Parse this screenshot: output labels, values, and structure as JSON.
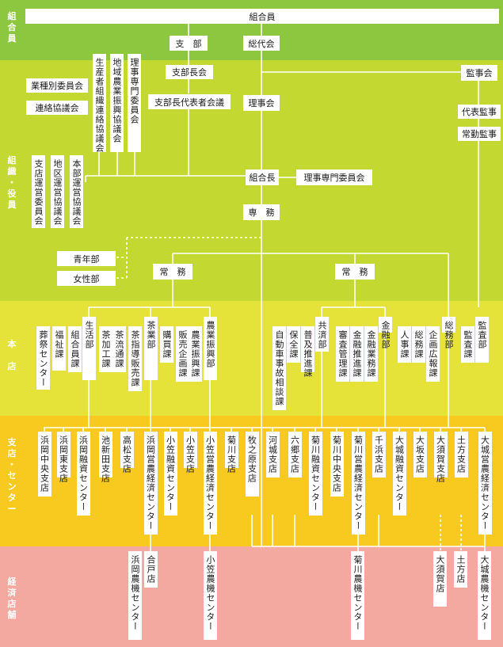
{
  "colors": {
    "band1": "#8dc63f",
    "band2": "#c4d832",
    "band3": "#e5e33a",
    "band4": "#f8c91e",
    "band5": "#f4a9a0",
    "line": "#ffffff",
    "label": "#ffffff"
  },
  "bands": [
    {
      "name": "組合員",
      "label": "組\n合\n員"
    },
    {
      "name": "組織・役員",
      "label": "組\n織\n・\n役\n員"
    },
    {
      "name": "本店",
      "label": "本\n\n店"
    },
    {
      "name": "支店・センター",
      "label": "支\n店\n・\nセ\nン\nタ\nー"
    },
    {
      "name": "経済店舗",
      "label": "経\n済\n店\n舗"
    }
  ],
  "nodes": {
    "kumiaiin": "組合員",
    "shibu": "支　部",
    "sodaikai": "総代会",
    "shibuchokai": "支部長会",
    "shibucho_daihyo": "支部長代表者会議",
    "rijikai": "理事会",
    "kumiaicho": "組合長",
    "riji_senmon": "理事専門委員会",
    "senmu": "専　務",
    "kansa": "監事会",
    "daihyo_kanji": "代表監事",
    "jokin_kanji": "常勤監事",
    "gyoshu": "業種別委員会",
    "renraku": "連絡協議会",
    "seisansha": "生産者組織連絡協議会",
    "chiiki_shinko": "地域農業振興協議会",
    "riji_senmon_iin": "理事専門委員会",
    "shiten_unei": "支店運営委員会",
    "chiku_unei": "地区運営協議会",
    "honbu_unei": "本部運営協議会",
    "seinen": "青年部",
    "josei": "女性部",
    "jomu_left": "常　務",
    "jomu_right": "常　務"
  },
  "honten": {
    "left_dept_a": "生活部",
    "left_dept_a_units": [
      "葬祭センター",
      "福祉課",
      "組合員課"
    ],
    "left_dept_a_direct": [
      "茶加工課"
    ],
    "left_dept_b": "茶業部",
    "left_dept_b_units": [
      "茶流通課",
      "茶指導販売課"
    ],
    "left_dept_c": "農業振興部",
    "left_dept_c_units": [
      "購買課",
      "販売企画課",
      "農業振興課"
    ],
    "right_dept_a_units": [
      "自動車事故相談課",
      "保全課",
      "普及推進課"
    ],
    "right_dept_a": "共済部",
    "right_dept_b_units": [
      "審査管理課",
      "金融推進課",
      "金融業務課"
    ],
    "right_dept_b": "金融部",
    "right_dept_c_units": [
      "人事課",
      "総務課",
      "企画広報課"
    ],
    "right_dept_c": "総務部",
    "audit_units": [
      "監査課"
    ],
    "audit_dept": "監査部"
  },
  "branches": [
    "浜岡中央支店",
    "浜岡東支店",
    "浜岡融資センター",
    "池新田支店",
    "高松支店",
    "浜岡営農経済センター",
    "小笠融資センター",
    "小笠支店",
    "小笠営農経済センター",
    "菊川支店",
    "牧之原支店",
    "河城支店",
    "六郷支店",
    "菊川融資センター",
    "菊川中央支店",
    "菊川営農経済センター",
    "千浜支店",
    "大城融資センター",
    "大坂支店",
    "大須賀支店",
    "土方支店",
    "大城営農経済センター"
  ],
  "stores": [
    "浜岡農機センター",
    "合戸店",
    "小笠農機センター",
    "菊川農機センター",
    "大須賀店",
    "土方店",
    "大城農機センター"
  ]
}
